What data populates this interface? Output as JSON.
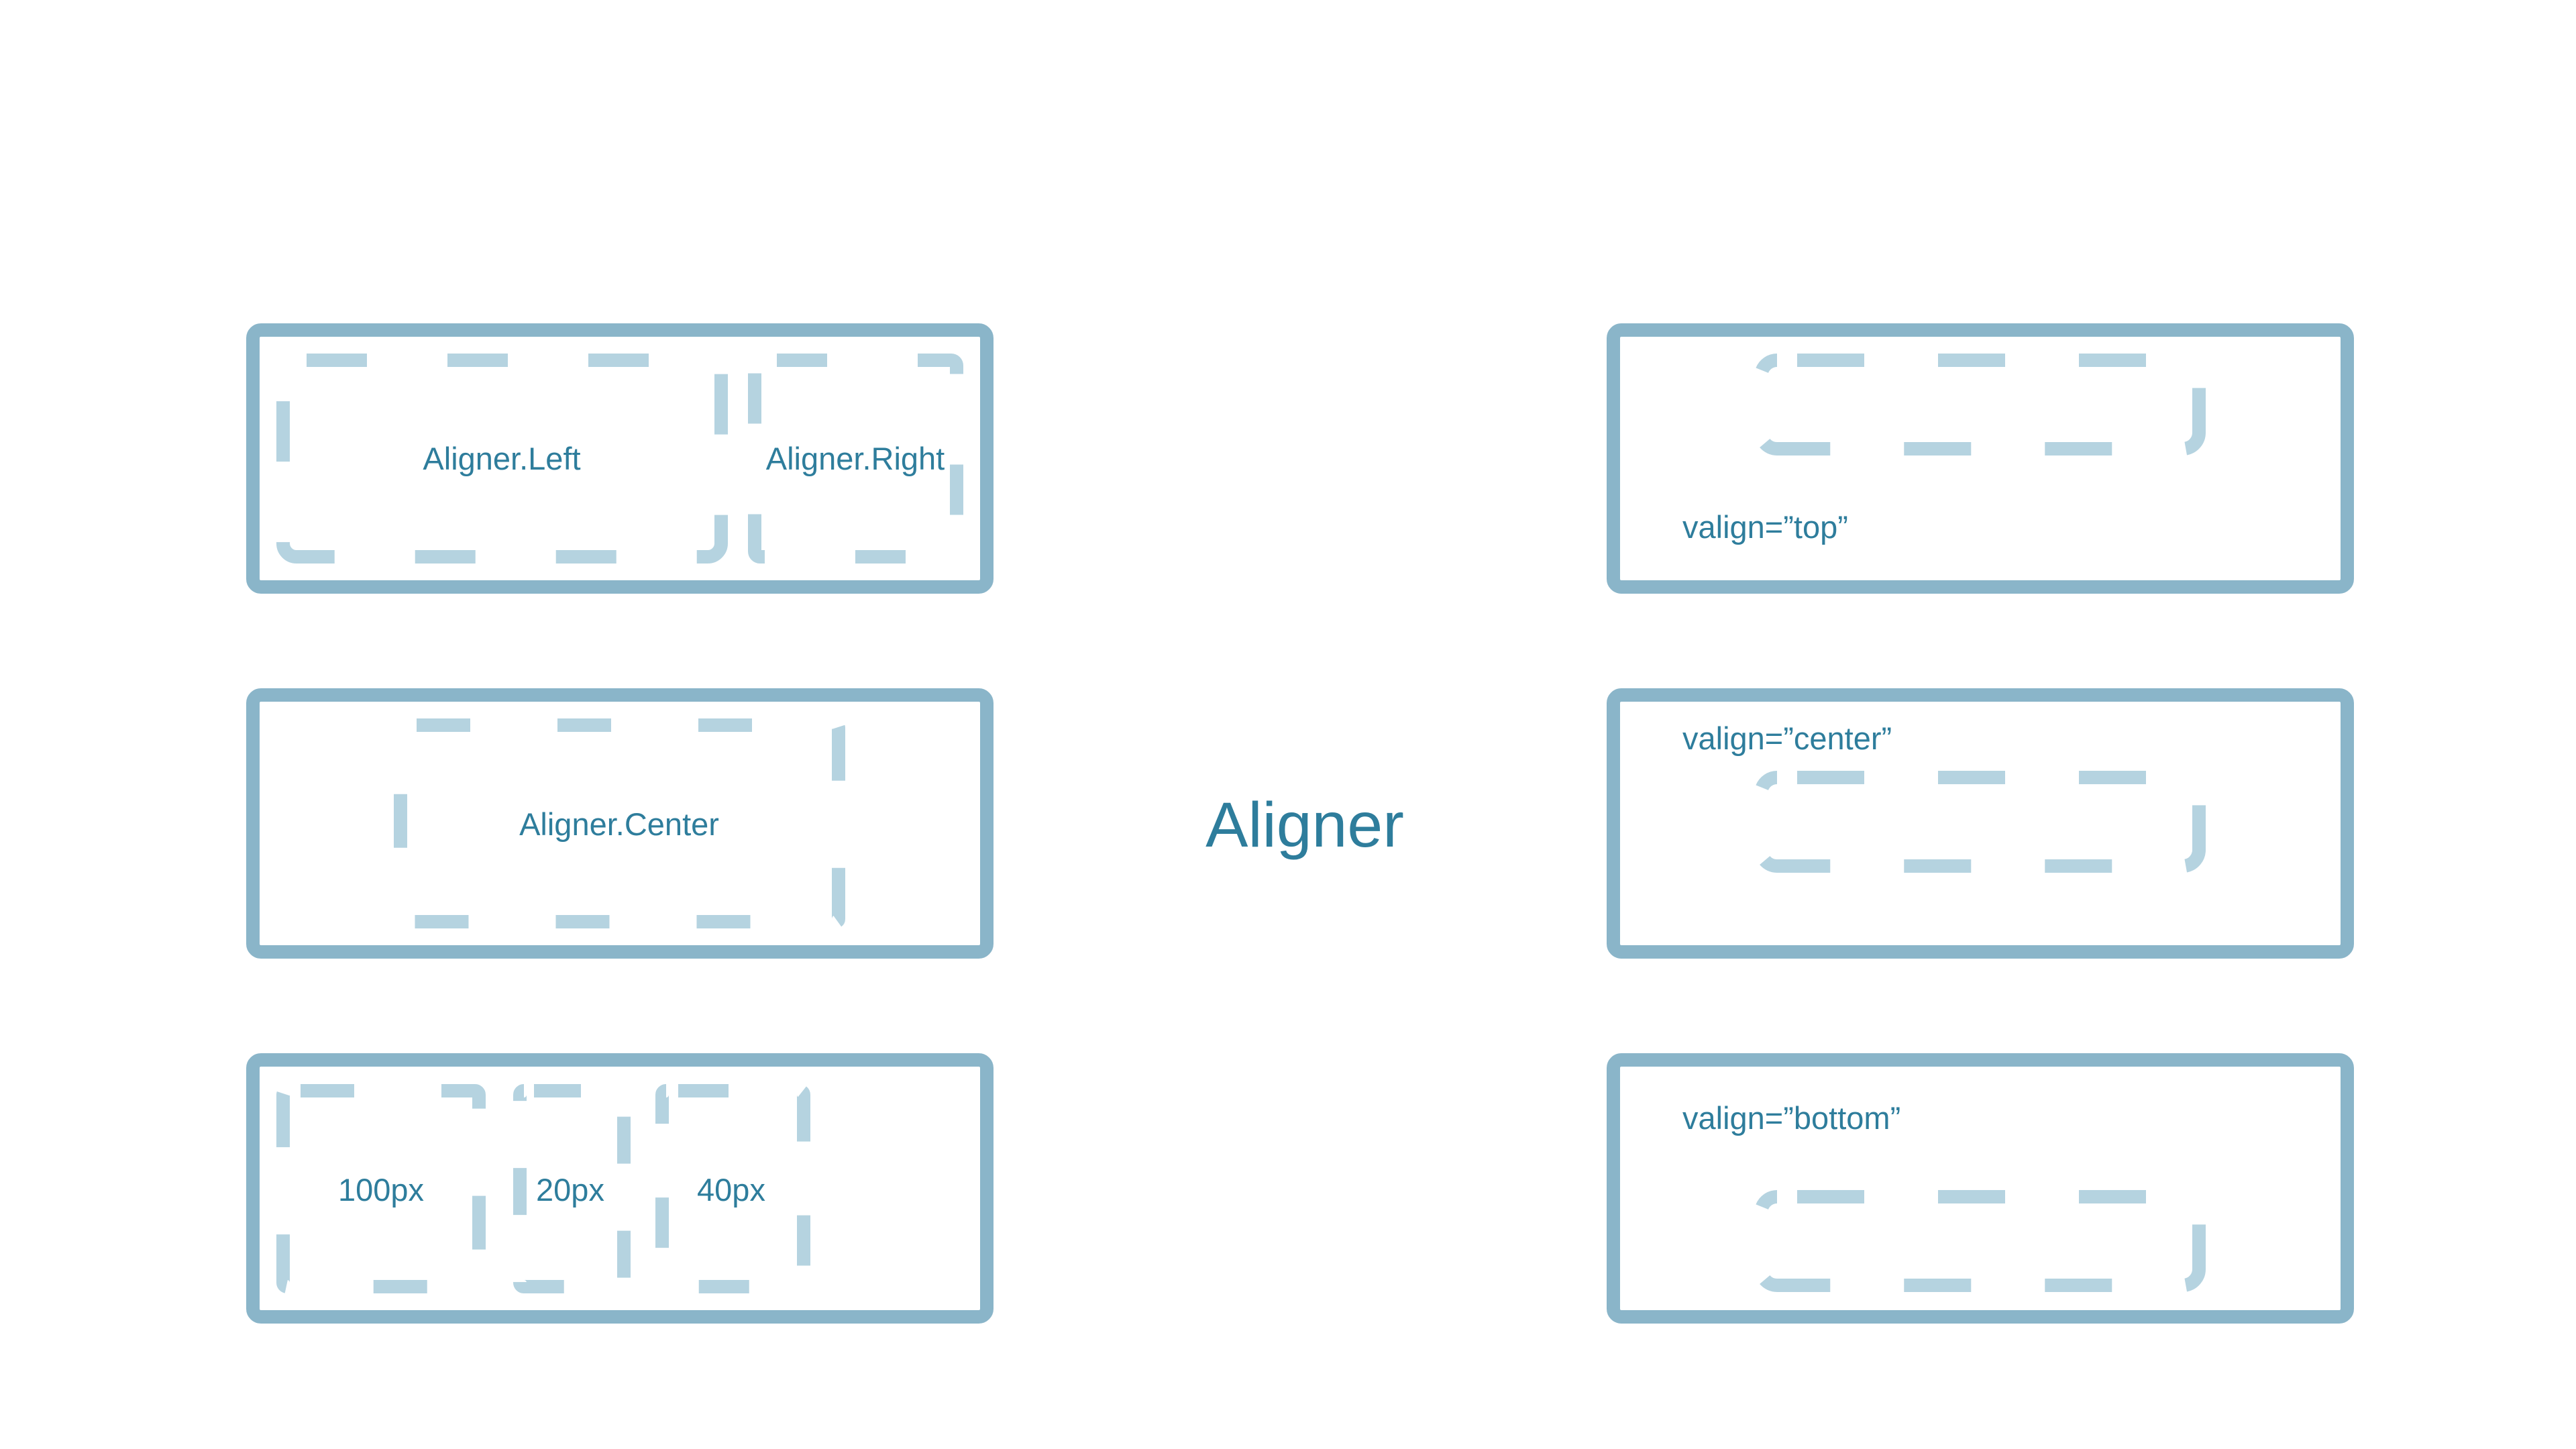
{
  "title": "Aligner",
  "left_panels": [
    {
      "labels": [
        "Aligner.Left",
        "Aligner.Right"
      ]
    },
    {
      "labels": [
        "Aligner.Center"
      ]
    },
    {
      "labels": [
        "100px",
        "20px",
        "40px"
      ]
    }
  ],
  "right_panels": [
    {
      "label": "valign=”top”"
    },
    {
      "label": "valign=”center”"
    },
    {
      "label": "valign=”bottom”"
    }
  ],
  "colors": {
    "frame": "#8ab5c9",
    "slot": "#b5d3e0",
    "text": "#2e7d9c",
    "background": "#ffffff"
  }
}
